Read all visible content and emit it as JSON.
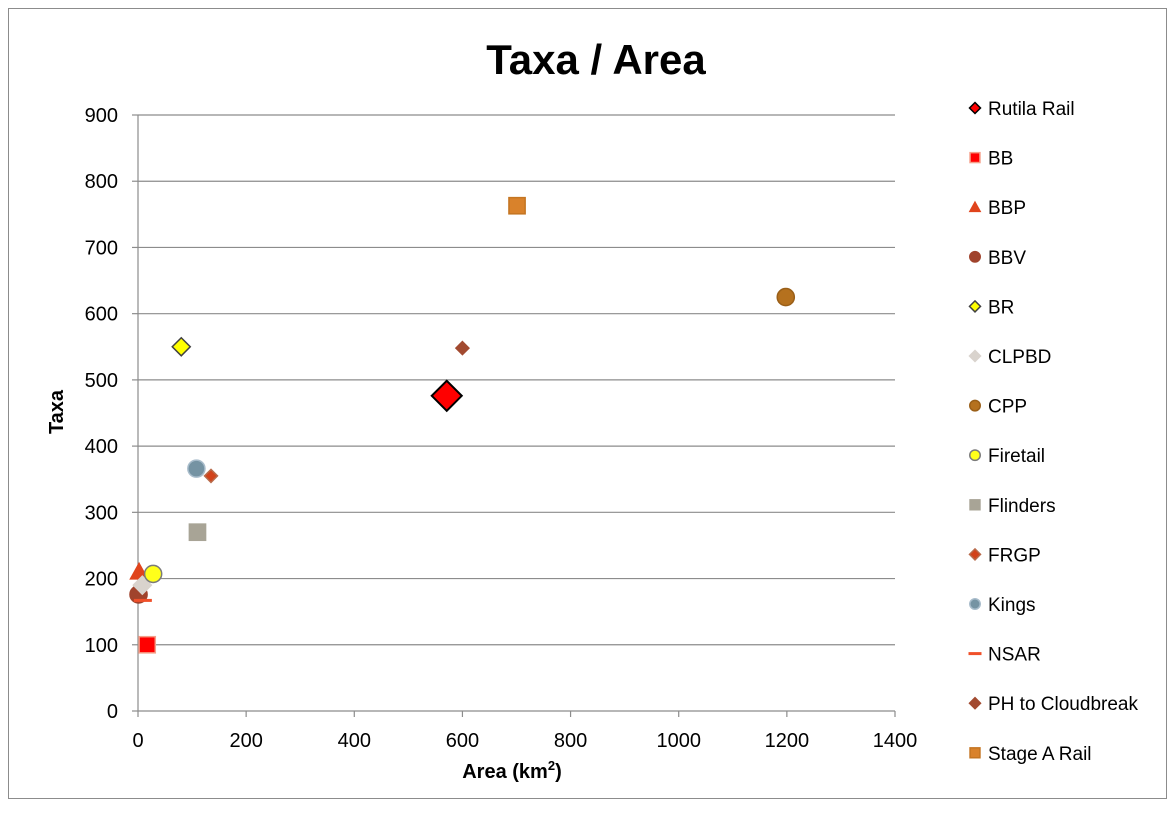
{
  "chart_data": {
    "type": "scatter",
    "title": "Taxa / Area",
    "xlabel": "Area (km",
    "xlabel_sup": "2",
    "xlabel_end": ")",
    "ylabel": "Taxa",
    "xlim": [
      0,
      1400
    ],
    "ylim": [
      0,
      900
    ],
    "xticks": [
      "0",
      "200",
      "400",
      "600",
      "800",
      "1000",
      "1200",
      "1400"
    ],
    "yticks": [
      "0",
      "100",
      "200",
      "300",
      "400",
      "500",
      "600",
      "700",
      "800",
      "900"
    ],
    "grid": "horizontal",
    "legend_position": "right",
    "series": [
      {
        "name": "Rutila Rail",
        "x": 571,
        "y": 476,
        "marker": "diamond",
        "color": "#ff0000",
        "stroke": "#000000",
        "size": "large"
      },
      {
        "name": "BB",
        "x": 17,
        "y": 100,
        "marker": "square",
        "color": "#ff0000",
        "stroke": "#f4a08a",
        "size": "medium"
      },
      {
        "name": "BBP",
        "x": 2,
        "y": 210,
        "marker": "triangle",
        "color": "#e0441c",
        "stroke": "#e0441c",
        "size": "medium"
      },
      {
        "name": "BBV",
        "x": 1,
        "y": 176,
        "marker": "circle",
        "color": "#a0432c",
        "stroke": "#a0432c",
        "size": "medium"
      },
      {
        "name": "BR",
        "x": 80,
        "y": 550,
        "marker": "diamond",
        "color": "#ffff00",
        "stroke": "#404040",
        "size": "medium"
      },
      {
        "name": "CLPBD",
        "x": 8,
        "y": 190,
        "marker": "diamond",
        "color": "#d9d3cd",
        "stroke": "#d9d3cd",
        "size": "medium"
      },
      {
        "name": "CPP",
        "x": 1198,
        "y": 625,
        "marker": "circle",
        "color": "#b5711e",
        "stroke": "#9a5f18",
        "size": "medium"
      },
      {
        "name": "Firetail",
        "x": 28,
        "y": 207,
        "marker": "circle",
        "color": "#ffff1a",
        "stroke": "#7a7a7a",
        "size": "medium"
      },
      {
        "name": "Flinders",
        "x": 110,
        "y": 270,
        "marker": "square",
        "color": "#a8a496",
        "stroke": "#a8a496",
        "size": "medium"
      },
      {
        "name": "FRGP",
        "x": 135,
        "y": 355,
        "marker": "diamond",
        "color": "#d2421a",
        "stroke": "#b86a4a",
        "size": "small"
      },
      {
        "name": "Kings",
        "x": 108,
        "y": 366,
        "marker": "circle",
        "color": "#7593a3",
        "stroke": "#a8bccb",
        "size": "medium"
      },
      {
        "name": "NSAR",
        "x": 9,
        "y": 167,
        "marker": "dash",
        "color": "#f0502a",
        "stroke": "#f0502a",
        "size": "medium"
      },
      {
        "name": "PH to Cloudbreak",
        "x": 600,
        "y": 548,
        "marker": "diamond",
        "color": "#a24a30",
        "stroke": "#a24a30",
        "size": "small"
      },
      {
        "name": "Stage A Rail",
        "x": 701,
        "y": 763,
        "marker": "square",
        "color": "#d9822b",
        "stroke": "#c47522",
        "size": "medium"
      }
    ]
  }
}
